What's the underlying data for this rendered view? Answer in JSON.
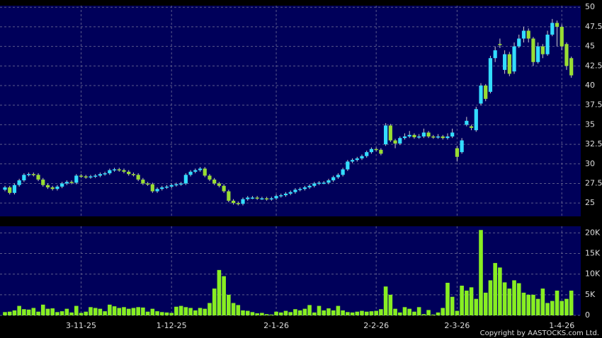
{
  "chart_data": [
    {
      "type": "candlestick",
      "up_color": "#33ddff",
      "down_color": "#99dd33",
      "wick_color": "#cccccc",
      "ylim": [
        23.3,
        50.2
      ],
      "yticks": [
        25,
        27.5,
        30,
        32.5,
        35,
        37.5,
        40,
        42.5,
        45,
        47.5,
        50
      ],
      "grid": true,
      "open": [
        26.7,
        27.0,
        26.3,
        27.3,
        27.9,
        28.6,
        28.7,
        28.6,
        28.0,
        27.3,
        27.0,
        26.8,
        27.1,
        27.5,
        27.7,
        27.6,
        28.5,
        28.4,
        28.3,
        28.4,
        28.5,
        28.7,
        28.8,
        29.2,
        29.3,
        29.2,
        29.0,
        28.7,
        28.6,
        28.0,
        27.5,
        27.4,
        26.5,
        26.8,
        27.0,
        27.1,
        27.3,
        27.4,
        27.5,
        28.6,
        29.0,
        29.2,
        29.4,
        28.5,
        28.0,
        27.5,
        27.2,
        26.5,
        25.3,
        25.0,
        24.9,
        25.5,
        25.7,
        25.7,
        25.6,
        25.6,
        25.5,
        25.6,
        25.9,
        26.0,
        26.2,
        26.4,
        26.7,
        26.8,
        27.0,
        27.2,
        27.5,
        27.6,
        27.6,
        27.9,
        28.3,
        28.6,
        29.3,
        30.3,
        30.5,
        30.7,
        31.0,
        31.5,
        31.9,
        31.8,
        32.5,
        34.9,
        33.0,
        32.6,
        33.3,
        33.5,
        33.7,
        33.4,
        33.5,
        34.0,
        33.5,
        33.4,
        33.5,
        33.3,
        33.5,
        32.0,
        31.5,
        35.0,
        34.8,
        34.3,
        37.7,
        40.0,
        39.2,
        43.5,
        45.3,
        42.0,
        44.0,
        41.8,
        45.0,
        46.0,
        47.0,
        46.0,
        43.0,
        45.0,
        44.0,
        46.5,
        48.0,
        47.5,
        45.3,
        43.5
      ],
      "high": [
        27.2,
        27.2,
        27.5,
        28.1,
        28.8,
        28.9,
        28.9,
        28.8,
        28.2,
        27.5,
        27.2,
        27.3,
        27.7,
        27.9,
        27.9,
        28.7,
        28.7,
        28.6,
        28.6,
        28.7,
        28.9,
        29.0,
        29.4,
        29.5,
        29.5,
        29.4,
        29.2,
        28.9,
        28.8,
        28.2,
        27.7,
        27.6,
        27.0,
        27.2,
        27.3,
        27.5,
        27.6,
        27.7,
        28.8,
        29.2,
        29.4,
        29.6,
        29.6,
        28.7,
        28.2,
        27.7,
        27.4,
        26.7,
        25.5,
        25.2,
        25.7,
        25.9,
        25.9,
        25.9,
        25.8,
        25.8,
        25.8,
        26.1,
        26.2,
        26.4,
        26.6,
        26.9,
        27.0,
        27.2,
        27.4,
        27.7,
        27.8,
        27.8,
        28.1,
        28.5,
        28.8,
        29.5,
        30.5,
        30.7,
        30.9,
        31.2,
        31.7,
        32.1,
        32.1,
        32.0,
        35.2,
        35.1,
        33.2,
        33.5,
        33.9,
        34.2,
        33.9,
        33.8,
        34.5,
        34.2,
        33.7,
        33.8,
        33.7,
        33.9,
        34.5,
        32.3,
        33.3,
        36.0,
        35.0,
        37.3,
        40.3,
        40.2,
        43.8,
        45.0,
        46.0,
        44.5,
        44.3,
        45.5,
        46.5,
        47.5,
        47.3,
        46.2,
        45.5,
        45.3,
        47.0,
        48.5,
        48.3,
        47.8,
        45.5,
        43.7
      ],
      "low": [
        26.5,
        26.1,
        26.1,
        27.1,
        27.7,
        28.4,
        28.4,
        27.8,
        27.1,
        26.8,
        26.6,
        26.6,
        26.9,
        27.3,
        27.4,
        27.4,
        28.2,
        28.1,
        28.1,
        28.2,
        28.3,
        28.5,
        28.6,
        29.0,
        29.0,
        28.8,
        28.5,
        28.4,
        27.8,
        27.3,
        27.2,
        26.3,
        26.3,
        26.6,
        26.8,
        26.9,
        27.1,
        27.2,
        27.3,
        28.4,
        28.8,
        29.0,
        28.3,
        27.8,
        27.3,
        27.0,
        26.3,
        25.1,
        24.8,
        24.7,
        24.7,
        25.3,
        25.5,
        25.4,
        25.4,
        25.3,
        25.3,
        25.4,
        25.7,
        25.8,
        26.0,
        26.2,
        26.5,
        26.6,
        26.8,
        27.0,
        27.3,
        27.4,
        27.4,
        27.7,
        28.1,
        28.4,
        29.1,
        30.1,
        30.3,
        30.5,
        30.8,
        31.3,
        31.6,
        31.1,
        32.3,
        32.8,
        32.0,
        32.4,
        33.1,
        33.3,
        33.2,
        33.2,
        33.3,
        33.3,
        33.2,
        33.2,
        33.1,
        33.1,
        33.3,
        30.3,
        31.3,
        34.8,
        34.3,
        34.1,
        37.5,
        38.0,
        39.0,
        43.0,
        44.8,
        41.5,
        41.2,
        41.5,
        44.8,
        45.5,
        45.5,
        42.5,
        42.8,
        43.5,
        43.8,
        46.3,
        45.0,
        44.5,
        42.0,
        41.0
      ],
      "close": [
        27.0,
        26.3,
        27.3,
        27.9,
        28.6,
        28.7,
        28.6,
        28.0,
        27.3,
        27.0,
        26.8,
        27.1,
        27.5,
        27.7,
        27.6,
        28.5,
        28.4,
        28.3,
        28.4,
        28.5,
        28.7,
        28.8,
        29.2,
        29.3,
        29.2,
        29.0,
        28.7,
        28.6,
        28.0,
        27.5,
        27.4,
        26.5,
        26.8,
        27.0,
        27.1,
        27.3,
        27.4,
        27.5,
        28.6,
        29.0,
        29.2,
        29.4,
        28.5,
        28.0,
        27.5,
        27.2,
        26.5,
        25.3,
        25.0,
        24.9,
        25.5,
        25.7,
        25.7,
        25.6,
        25.6,
        25.5,
        25.6,
        25.9,
        26.0,
        26.2,
        26.4,
        26.7,
        26.8,
        27.0,
        27.2,
        27.5,
        27.6,
        27.6,
        27.9,
        28.3,
        28.6,
        29.3,
        30.3,
        30.5,
        30.7,
        31.0,
        31.5,
        31.9,
        31.8,
        31.3,
        34.9,
        33.0,
        32.6,
        33.3,
        33.5,
        33.7,
        33.4,
        33.5,
        34.0,
        33.5,
        33.4,
        33.5,
        33.3,
        33.5,
        34.0,
        30.9,
        33.0,
        35.5,
        34.6,
        37.0,
        40.0,
        38.3,
        43.5,
        44.5,
        45.2,
        44.0,
        41.5,
        45.0,
        46.0,
        47.0,
        46.0,
        43.0,
        45.0,
        44.0,
        46.5,
        48.0,
        47.5,
        45.0,
        42.5,
        41.3
      ]
    },
    {
      "type": "bar",
      "color": "#88ee22",
      "ylim": [
        0,
        21600
      ],
      "yticks": [
        0,
        {
          "value": 5000,
          "label": "5K"
        },
        {
          "value": 10000,
          "label": "10K"
        },
        {
          "value": 15000,
          "label": "15K"
        },
        {
          "value": 20000,
          "label": "20K"
        }
      ],
      "grid": true,
      "categories": [
        null,
        null,
        null,
        null,
        null,
        null,
        null,
        null,
        null,
        null,
        null,
        null,
        null,
        null,
        null,
        null,
        "3-11-25",
        null,
        null,
        null,
        null,
        null,
        null,
        null,
        null,
        null,
        null,
        null,
        null,
        null,
        null,
        null,
        null,
        null,
        null,
        "1-12-25",
        null,
        null,
        null,
        null,
        null,
        null,
        null,
        null,
        null,
        null,
        null,
        null,
        null,
        null,
        null,
        null,
        null,
        null,
        null,
        null,
        null,
        "2-1-26",
        null,
        null,
        null,
        null,
        null,
        null,
        null,
        null,
        null,
        null,
        null,
        null,
        null,
        null,
        null,
        null,
        null,
        null,
        null,
        null,
        "2-2-26",
        null,
        null,
        null,
        null,
        null,
        null,
        null,
        null,
        null,
        null,
        null,
        null,
        null,
        null,
        null,
        null,
        "2-3-26",
        null,
        null,
        null,
        null,
        null,
        null,
        null,
        null,
        null,
        null,
        null,
        null,
        null,
        null,
        null,
        null,
        null,
        null,
        null,
        null,
        null,
        "1-4-26",
        null,
        null
      ],
      "values": [
        800,
        900,
        1200,
        2300,
        1500,
        1400,
        1800,
        900,
        2600,
        1600,
        1700,
        800,
        1000,
        1600,
        700,
        2300,
        600,
        900,
        2000,
        1800,
        1600,
        1000,
        2600,
        2200,
        1800,
        2000,
        1600,
        1800,
        2000,
        1900,
        900,
        1600,
        1000,
        800,
        700,
        600,
        2100,
        2300,
        2000,
        1800,
        1200,
        1800,
        1600,
        3000,
        6500,
        11000,
        9500,
        5000,
        3000,
        2500,
        1200,
        1100,
        800,
        500,
        600,
        300,
        200,
        900,
        700,
        1100,
        800,
        1500,
        1200,
        1600,
        2500,
        700,
        2300,
        1200,
        1700,
        1200,
        2300,
        1200,
        800,
        700,
        900,
        1100,
        900,
        1000,
        1100,
        1500,
        7000,
        5000,
        1600,
        700,
        2000,
        1600,
        900,
        2000,
        300,
        1300,
        200,
        700,
        1800,
        7900,
        4500,
        1100,
        7200,
        6000,
        6800,
        4000,
        20700,
        5500,
        8500,
        12700,
        11600,
        8000,
        6500,
        8500,
        7800,
        5500,
        5000,
        5000,
        4000,
        6500,
        3000,
        3500,
        6000,
        3500,
        4000,
        6000
      ]
    }
  ],
  "footer": "Copyright by AASTOCKS.com Ltd."
}
